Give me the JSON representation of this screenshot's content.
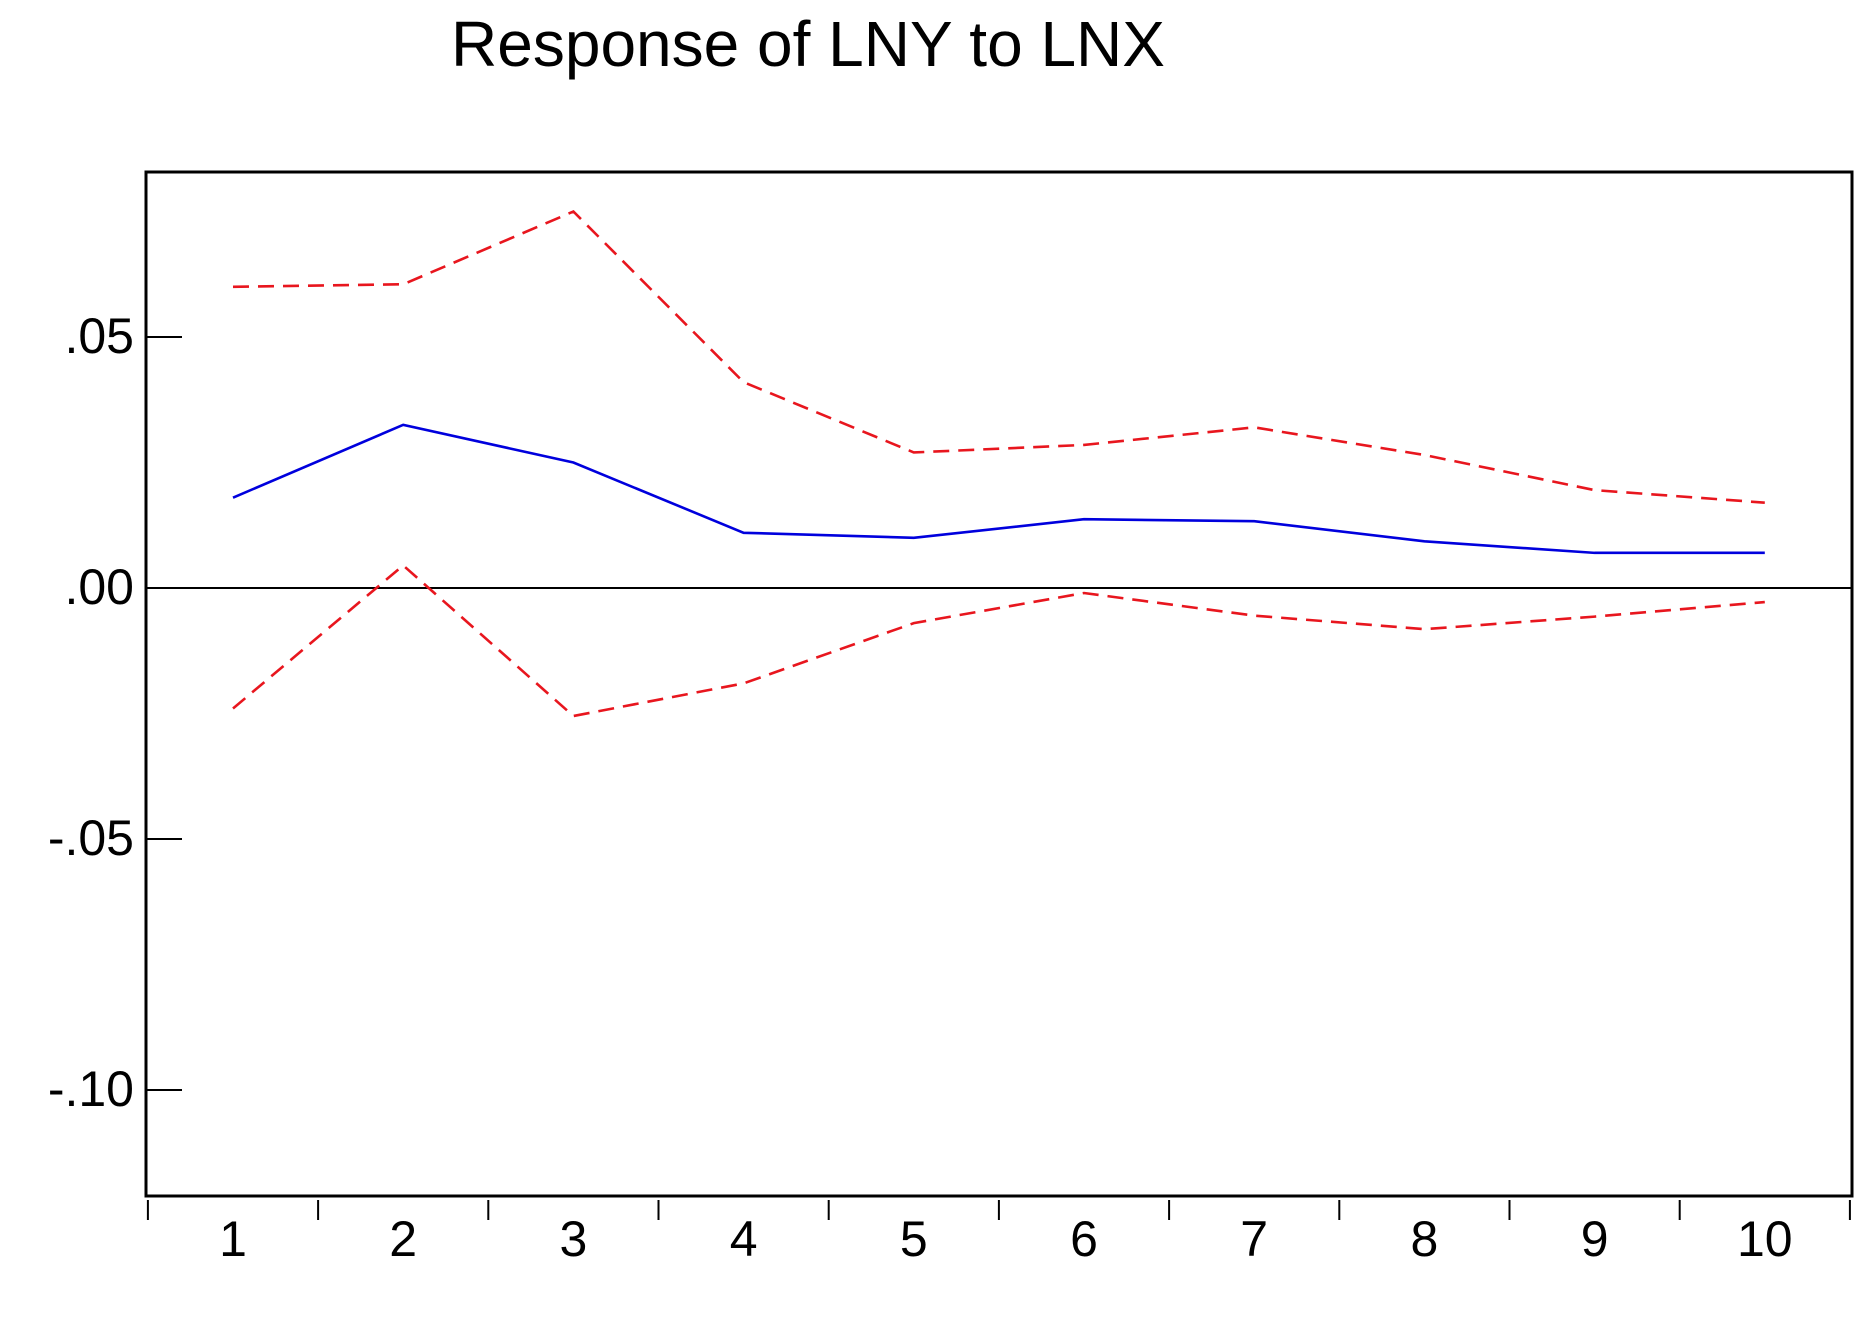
{
  "chart_data": {
    "type": "line",
    "title": "Response of LNY to LNX",
    "xlabel": "",
    "ylabel": "",
    "categories": [
      "1",
      "2",
      "3",
      "4",
      "5",
      "6",
      "7",
      "8",
      "9",
      "10"
    ],
    "ylim": [
      -0.12,
      0.083
    ],
    "yticks": [
      {
        "value": 0.05,
        "label": ".05"
      },
      {
        "value": 0.0,
        "label": ".00"
      },
      {
        "value": -0.05,
        "label": "-.05"
      },
      {
        "value": -0.1,
        "label": "-.10"
      }
    ],
    "zero_line": true,
    "grid": false,
    "legend": "none",
    "series": [
      {
        "style": "solid",
        "color": "#0000dd",
        "values": [
          0.018,
          0.0325,
          0.025,
          0.011,
          0.01,
          0.0137,
          0.0133,
          0.0093,
          0.007,
          0.007
        ]
      },
      {
        "style": "dashed",
        "color": "#e8161e",
        "values": [
          0.06,
          0.0605,
          0.075,
          0.041,
          0.027,
          0.0285,
          0.032,
          0.0265,
          0.0195,
          0.017
        ]
      },
      {
        "style": "dashed",
        "color": "#e8161e",
        "values": [
          -0.024,
          0.0045,
          -0.0255,
          -0.019,
          -0.007,
          -0.001,
          -0.0055,
          -0.0082,
          -0.0057,
          -0.0028
        ]
      }
    ]
  }
}
